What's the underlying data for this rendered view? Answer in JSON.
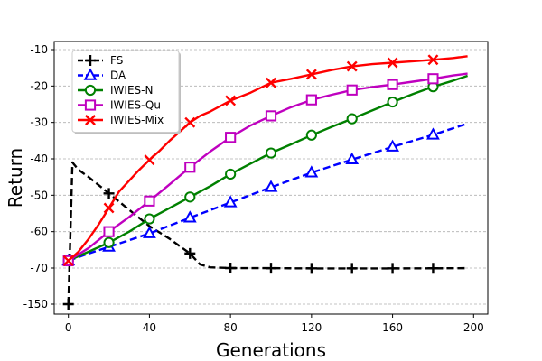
{
  "chart_data": {
    "type": "line",
    "title": "",
    "xlabel": "Generations",
    "ylabel": "Return",
    "xlim": [
      -7,
      207
    ],
    "xticks": [
      0,
      40,
      80,
      120,
      160,
      200
    ],
    "yticks": [
      -150,
      -70,
      -60,
      -50,
      -40,
      -30,
      -20,
      -10
    ],
    "ytick_labels": [
      "-150",
      "-70",
      "-60",
      "-50",
      "-40",
      "-30",
      "-20",
      "-10"
    ],
    "y_axis_note": "non-uniform: bottom tick -150, remaining ticks evenly spaced by 10",
    "grid": "horizontal-dashed",
    "legend_position": "top-left",
    "series": [
      {
        "name": "FS",
        "color": "#000000",
        "linestyle": "dashed",
        "marker": "plus",
        "x": [
          0,
          2,
          5,
          10,
          20,
          30,
          40,
          50,
          60,
          65,
          70,
          80,
          100,
          120,
          140,
          160,
          180,
          197
        ],
        "y": [
          -150,
          -41,
          -43,
          -45,
          -49.5,
          -54,
          -58.5,
          -62,
          -66,
          -69,
          -69.8,
          -70,
          -70.3,
          -70.7,
          -70.7,
          -70.7,
          -70.5,
          -70.2
        ],
        "marker_x": [
          0,
          20,
          60,
          80,
          100,
          120,
          140,
          160,
          180
        ]
      },
      {
        "name": "DA",
        "color": "#0000ff",
        "linestyle": "dashed",
        "marker": "triangle",
        "x": [
          0,
          10,
          20,
          40,
          60,
          80,
          100,
          120,
          140,
          160,
          180,
          197
        ],
        "y": [
          -68,
          -66,
          -64.2,
          -60.5,
          -56.2,
          -52,
          -47.8,
          -43.8,
          -40.2,
          -36.7,
          -33.4,
          -30.3
        ],
        "marker_x": [
          0,
          20,
          40,
          60,
          80,
          100,
          120,
          140,
          160,
          180
        ]
      },
      {
        "name": "IWIES-N",
        "color": "#008000",
        "linestyle": "solid",
        "marker": "circle",
        "x": [
          0,
          10,
          20,
          30,
          40,
          50,
          60,
          70,
          80,
          90,
          100,
          110,
          120,
          130,
          140,
          150,
          160,
          170,
          180,
          190,
          197
        ],
        "y": [
          -68,
          -65.5,
          -63,
          -60,
          -56.5,
          -53.5,
          -50.5,
          -47.5,
          -44.2,
          -41.3,
          -38.4,
          -36,
          -33.5,
          -31.2,
          -29,
          -26.7,
          -24.4,
          -22.2,
          -20.2,
          -18.5,
          -17.2
        ],
        "marker_x": [
          0,
          20,
          40,
          60,
          80,
          100,
          120,
          140,
          160,
          180
        ]
      },
      {
        "name": "IWIES-Qu",
        "color": "#bf00bf",
        "linestyle": "solid",
        "marker": "square",
        "x": [
          0,
          10,
          20,
          30,
          40,
          50,
          60,
          70,
          80,
          90,
          100,
          110,
          120,
          130,
          140,
          150,
          160,
          170,
          180,
          190,
          197
        ],
        "y": [
          -68,
          -64.5,
          -60,
          -56,
          -51.6,
          -47,
          -42.3,
          -38,
          -34.1,
          -30.8,
          -28.2,
          -25.8,
          -23.8,
          -22.4,
          -21.1,
          -20.3,
          -19.6,
          -18.8,
          -18,
          -17.1,
          -16.6
        ],
        "marker_x": [
          0,
          20,
          40,
          60,
          80,
          100,
          120,
          140,
          160,
          180
        ]
      },
      {
        "name": "IWIES-Mix",
        "color": "#ff0000",
        "linestyle": "solid",
        "marker": "x",
        "x": [
          0,
          5,
          10,
          15,
          20,
          25,
          30,
          35,
          40,
          45,
          50,
          55,
          60,
          65,
          70,
          75,
          80,
          90,
          100,
          110,
          120,
          130,
          140,
          150,
          160,
          170,
          180,
          190,
          197
        ],
        "y": [
          -68,
          -65.5,
          -62,
          -58,
          -53.5,
          -49,
          -46,
          -43,
          -40.3,
          -37.8,
          -35,
          -32.5,
          -30,
          -28.2,
          -27,
          -25.5,
          -24,
          -21.8,
          -19.1,
          -18,
          -16.8,
          -15.6,
          -14.6,
          -14,
          -13.6,
          -13.2,
          -12.8,
          -12.3,
          -11.8
        ],
        "marker_x": [
          0,
          20,
          40,
          60,
          80,
          100,
          120,
          140,
          160,
          180
        ]
      }
    ]
  }
}
